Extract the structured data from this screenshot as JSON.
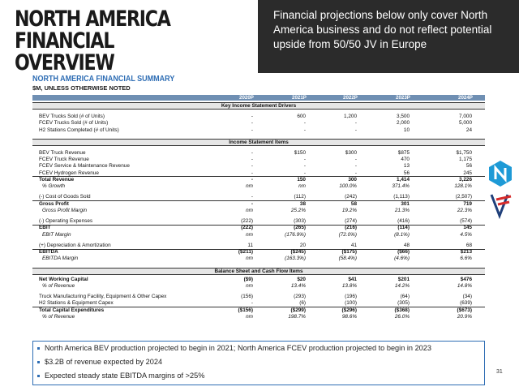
{
  "header": {
    "title": "NORTH AMERICA FINANCIAL OVERVIEW",
    "callout": "Financial projections below only cover North America business and do not reflect potential upside from 50/50 JV in Europe"
  },
  "summary": {
    "title": "NORTH AMERICA FINANCIAL SUMMARY",
    "units": "$M, UNLESS OTHERWISE NOTED"
  },
  "table": {
    "columns": [
      "2020P",
      "2021P",
      "2022P",
      "2023P",
      "2024P"
    ],
    "sections": [
      {
        "title": "Key Income Statement Drivers",
        "rows": [
          {
            "label": "BEV Trucks Sold (# of Units)",
            "values": [
              "-",
              "600",
              "1,200",
              "3,500",
              "7,000"
            ]
          },
          {
            "label": "FCEV Trucks Sold (# of Units)",
            "values": [
              "-",
              "-",
              "-",
              "2,000",
              "5,000"
            ]
          },
          {
            "label": "H2 Stations Completed (# of Units)",
            "values": [
              "-",
              "-",
              "-",
              "10",
              "24"
            ]
          }
        ]
      },
      {
        "title": "Income Statement Items",
        "rows": [
          {
            "label": "BEV Truck Revenue",
            "values": [
              "-",
              "$150",
              "$300",
              "$875",
              "$1,750"
            ]
          },
          {
            "label": "FCEV Truck Revenue",
            "values": [
              "-",
              "-",
              "-",
              "470",
              "1,175"
            ]
          },
          {
            "label": "FCEV Service & Maintenance Revenue",
            "values": [
              "-",
              "-",
              "-",
              "13",
              "56"
            ]
          },
          {
            "label": "FCEV Hydrogen Revenue",
            "values": [
              "-",
              "-",
              "-",
              "56",
              "245"
            ]
          },
          {
            "label": "Total Revenue",
            "values": [
              "-",
              "150",
              "300",
              "1,414",
              "3,226"
            ]
          },
          {
            "label": "% Growth",
            "values": [
              "nm",
              "nm",
              "100.0%",
              "371.4%",
              "128.1%"
            ]
          },
          {
            "label": "(-) Cost of Goods Sold",
            "values": [
              "-",
              "(112)",
              "(242)",
              "(1,113)",
              "(2,507)"
            ]
          },
          {
            "label": "Gross Profit",
            "values": [
              "-",
              "38",
              "58",
              "301",
              "719"
            ]
          },
          {
            "label": "Gross Profit Margin",
            "values": [
              "nm",
              "25.2%",
              "19.2%",
              "21.3%",
              "22.3%"
            ]
          },
          {
            "label": "(-) Operating Expenses",
            "values": [
              "(222)",
              "(303)",
              "(274)",
              "(416)",
              "(574)"
            ]
          },
          {
            "label": "EBIT",
            "values": [
              "(222)",
              "(265)",
              "(216)",
              "(114)",
              "145"
            ]
          },
          {
            "label": "EBIT Margin",
            "values": [
              "nm",
              "(176.9%)",
              "(72.0%)",
              "(8.1%)",
              "4.5%"
            ]
          },
          {
            "label": "(+) Depreciation & Amortization",
            "values": [
              "11",
              "20",
              "41",
              "48",
              "68"
            ]
          },
          {
            "label": "EBITDA",
            "values": [
              "($211)",
              "($245)",
              "($175)",
              "($66)",
              "$213"
            ]
          },
          {
            "label": "EBITDA Margin",
            "values": [
              "nm",
              "(163.3%)",
              "(58.4%)",
              "(4.6%)",
              "6.6%"
            ]
          }
        ]
      },
      {
        "title": "Balance Sheet and Cash Flow Items",
        "rows": [
          {
            "label": "Net Working Capital",
            "values": [
              "($9)",
              "$20",
              "$41",
              "$201",
              "$476"
            ]
          },
          {
            "label": "% of Revenue",
            "values": [
              "nm",
              "13.4%",
              "13.8%",
              "14.2%",
              "14.8%"
            ]
          },
          {
            "label": "Truck Manufacturing Facility, Equipment & Other Capex",
            "values": [
              "(156)",
              "(293)",
              "(196)",
              "(64)",
              "(34)"
            ]
          },
          {
            "label": "H2 Stations & Equipment Capex",
            "values": [
              "-",
              "(6)",
              "(100)",
              "(305)",
              "(639)"
            ]
          },
          {
            "label": "Total Capital Expenditures",
            "values": [
              "($156)",
              "($299)",
              "($296)",
              "($368)",
              "($673)"
            ]
          },
          {
            "label": "% of Revenue",
            "values": [
              "nm",
              "198.7%",
              "98.6%",
              "26.0%",
              "20.9%"
            ]
          }
        ]
      }
    ]
  },
  "bullets": [
    "North America BEV production projected to begin in 2021; North America FCEV production projected to begin in 2023",
    "$3.2B of revenue expected by 2024",
    "Expected steady state EBITDA margins of >25%"
  ],
  "page_number": "31"
}
